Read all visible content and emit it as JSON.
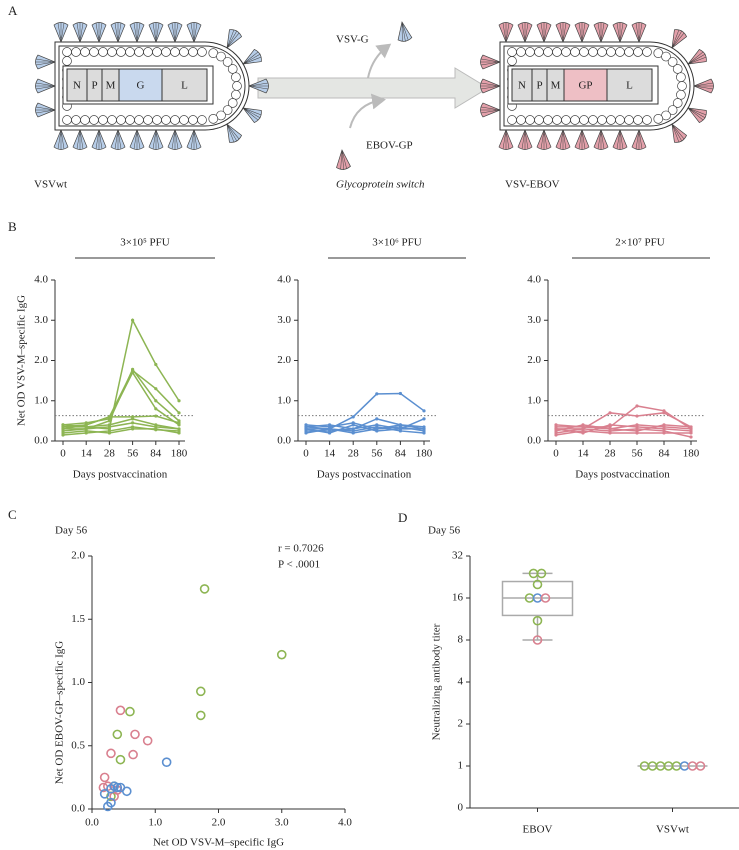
{
  "panel_labels": [
    "A",
    "B",
    "C",
    "D"
  ],
  "diagram": {
    "left": {
      "name": "VSVwt",
      "genes": [
        "N",
        "P",
        "M",
        "G",
        "L"
      ]
    },
    "right": {
      "name": "VSV-EBOV",
      "genes": [
        "N",
        "P",
        "M",
        "GP",
        "L"
      ]
    },
    "removed": "VSV-G",
    "added": "EBOV-GP",
    "switch": "Glycoprotein switch"
  },
  "chart_data": [
    {
      "type": "line",
      "title": "3×10⁵ PFU",
      "ylabel": "Net OD VSV-M–specific IgG",
      "xlabel": "Days postvaccination",
      "categories": [
        "0",
        "14",
        "28",
        "56",
        "84",
        "180"
      ],
      "color": "#8db553",
      "series": [
        {
          "values": [
            0.4,
            0.35,
            0.3,
            3.0,
            1.9,
            1.0
          ]
        },
        {
          "values": [
            0.3,
            0.4,
            0.6,
            1.75,
            1.3,
            0.7
          ]
        },
        {
          "values": [
            0.25,
            0.3,
            0.5,
            1.78,
            1.0,
            0.5
          ]
        },
        {
          "values": [
            0.4,
            0.45,
            0.55,
            1.7,
            0.8,
            0.4
          ]
        },
        {
          "values": [
            0.35,
            0.4,
            0.6,
            0.6,
            0.62,
            0.45
          ]
        },
        {
          "values": [
            0.3,
            0.3,
            0.35,
            0.45,
            0.35,
            0.3
          ]
        },
        {
          "values": [
            0.2,
            0.25,
            0.2,
            0.3,
            0.3,
            0.2
          ]
        },
        {
          "values": [
            0.15,
            0.2,
            0.25,
            0.35,
            0.28,
            0.25
          ]
        },
        {
          "values": [
            0.35,
            0.35,
            0.4,
            0.55,
            0.4,
            0.3
          ]
        }
      ],
      "ylim": [
        0,
        4
      ],
      "yticks": [
        {
          "value": 0,
          "label": "0.0"
        },
        {
          "value": 1,
          "label": "1.0"
        },
        {
          "value": 2,
          "label": "2.0"
        },
        {
          "value": 3,
          "label": "3.0"
        },
        {
          "value": 4,
          "label": "4.0"
        }
      ],
      "reference_line": 0.63
    },
    {
      "type": "line",
      "title": "3×10⁶ PFU",
      "xlabel": "Days postvaccination",
      "categories": [
        "0",
        "14",
        "28",
        "56",
        "84",
        "180"
      ],
      "color": "#5b8fd0",
      "series": [
        {
          "values": [
            0.3,
            0.3,
            0.6,
            1.17,
            1.18,
            0.75
          ]
        },
        {
          "values": [
            0.35,
            0.4,
            0.3,
            0.55,
            0.4,
            0.3
          ]
        },
        {
          "values": [
            0.4,
            0.35,
            0.45,
            0.3,
            0.35,
            0.25
          ]
        },
        {
          "values": [
            0.3,
            0.2,
            0.4,
            0.25,
            0.3,
            0.3
          ]
        },
        {
          "values": [
            0.2,
            0.3,
            0.25,
            0.35,
            0.25,
            0.2
          ]
        },
        {
          "values": [
            0.35,
            0.3,
            0.2,
            0.3,
            0.4,
            0.35
          ]
        },
        {
          "values": [
            0.25,
            0.25,
            0.3,
            0.4,
            0.3,
            0.55
          ]
        }
      ],
      "ylim": [
        0,
        4
      ],
      "yticks": [
        {
          "value": 0,
          "label": "0.0"
        },
        {
          "value": 1,
          "label": "1.0"
        },
        {
          "value": 2,
          "label": "2.0"
        },
        {
          "value": 3,
          "label": "3.0"
        },
        {
          "value": 4,
          "label": "4.0"
        }
      ],
      "reference_line": 0.63
    },
    {
      "type": "line",
      "title": "2×10⁷ PFU",
      "xlabel": "Days postvaccination",
      "categories": [
        "0",
        "14",
        "28",
        "56",
        "84",
        "180"
      ],
      "color": "#d9808f",
      "series": [
        {
          "values": [
            0.3,
            0.3,
            0.7,
            0.62,
            0.7,
            0.35
          ]
        },
        {
          "values": [
            0.35,
            0.35,
            0.35,
            0.87,
            0.75,
            0.3
          ]
        },
        {
          "values": [
            0.25,
            0.4,
            0.3,
            0.4,
            0.35,
            0.3
          ]
        },
        {
          "values": [
            0.3,
            0.2,
            0.4,
            0.35,
            0.3,
            0.25
          ]
        },
        {
          "values": [
            0.2,
            0.3,
            0.25,
            0.3,
            0.25,
            0.1
          ]
        },
        {
          "values": [
            0.4,
            0.35,
            0.3,
            0.25,
            0.4,
            0.35
          ]
        },
        {
          "values": [
            0.15,
            0.25,
            0.2,
            0.2,
            0.2,
            0.2
          ]
        }
      ],
      "ylim": [
        0,
        4
      ],
      "yticks": [
        {
          "value": 0,
          "label": "0.0"
        },
        {
          "value": 1,
          "label": "1.0"
        },
        {
          "value": 2,
          "label": "2.0"
        },
        {
          "value": 3,
          "label": "3.0"
        },
        {
          "value": 4,
          "label": "4.0"
        }
      ],
      "reference_line": 0.63
    },
    {
      "type": "scatter",
      "subtitle": "Day 56",
      "annotations": [
        "r = 0.7026",
        "P < .0001"
      ],
      "xlabel": "Net OD VSV-M–specific IgG",
      "ylabel": "Net OD EBOV-GP–specific IgG",
      "series": [
        {
          "color": "#8db553",
          "x": [
            3.0,
            1.78,
            1.72,
            1.72,
            0.6,
            0.4,
            0.45,
            0.35,
            0.3
          ],
          "values": [
            1.22,
            1.74,
            0.93,
            0.74,
            0.77,
            0.59,
            0.39,
            0.18,
            0.1
          ]
        },
        {
          "color": "#d9808f",
          "x": [
            0.45,
            0.68,
            0.3,
            0.88,
            0.65,
            0.2,
            0.35,
            0.4,
            0.18,
            0.25
          ],
          "values": [
            0.78,
            0.59,
            0.44,
            0.54,
            0.43,
            0.25,
            0.1,
            0.15,
            0.17,
            0.18
          ]
        },
        {
          "color": "#5b8fd0",
          "x": [
            1.18,
            0.55,
            0.45,
            0.3,
            0.25,
            0.3,
            0.35,
            0.4,
            0.2
          ],
          "values": [
            0.37,
            0.14,
            0.17,
            0.16,
            0.02,
            0.05,
            0.18,
            0.17,
            0.12
          ]
        }
      ],
      "xlim": [
        0,
        4
      ],
      "xticks": [
        {
          "value": 0,
          "label": "0.0"
        },
        {
          "value": 1,
          "label": "1.0"
        },
        {
          "value": 2,
          "label": "2.0"
        },
        {
          "value": 3,
          "label": "3.0"
        },
        {
          "value": 4,
          "label": "4.0"
        }
      ],
      "ylim": [
        0,
        2
      ],
      "yticks": [
        {
          "value": 0,
          "label": "0.0"
        },
        {
          "value": 0.5,
          "label": "0.5"
        },
        {
          "value": 1,
          "label": "1.0"
        },
        {
          "value": 1.5,
          "label": "1.5"
        },
        {
          "value": 2,
          "label": "2.0"
        }
      ]
    },
    {
      "type": "box",
      "subtitle": "Day 56",
      "ylabel": "Neutralizing antibody titer",
      "categories": [
        "EBOV",
        "VSVwt"
      ],
      "yscale": "log2",
      "series": [
        {
          "color": "#8db553",
          "values": [
            [
              24,
              24,
              20,
              16,
              11
            ],
            [
              1,
              1,
              1,
              1,
              1
            ]
          ]
        },
        {
          "color": "#5b8fd0",
          "values": [
            [
              16
            ],
            [
              1
            ]
          ]
        },
        {
          "color": "#d9808f",
          "values": [
            [
              16,
              8
            ],
            [
              1,
              1
            ]
          ]
        }
      ],
      "boxes": [
        {
          "min": 8,
          "q1": 12,
          "median": 16,
          "q3": 21,
          "max": 24
        },
        {
          "median": 1
        }
      ],
      "ylim": [
        0,
        32
      ],
      "yticks": [
        0,
        1,
        2,
        4,
        8,
        16,
        32
      ]
    }
  ]
}
